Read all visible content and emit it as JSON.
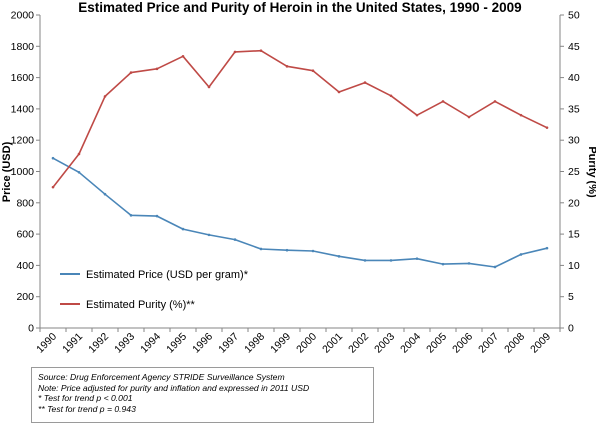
{
  "chart_data": {
    "type": "line",
    "title": "Estimated Price and Purity of Heroin in the United States, 1990 - 2009",
    "x": [
      "1990",
      "1991",
      "1992",
      "1993",
      "1994",
      "1995",
      "1996",
      "1997",
      "1998",
      "1999",
      "2000",
      "2001",
      "2002",
      "2003",
      "2004",
      "2005",
      "2006",
      "2007",
      "2008",
      "2009"
    ],
    "ylabel_left": "Price (USD)",
    "ylabel_right": "Purity (%)",
    "ylim_left": [
      0,
      2000
    ],
    "ylim_right": [
      0,
      50
    ],
    "yticks_left": [
      "0",
      "200",
      "400",
      "600",
      "800",
      "1000",
      "1200",
      "1400",
      "1600",
      "1800",
      "2000"
    ],
    "yticks_right": [
      "0",
      "5",
      "10",
      "15",
      "20",
      "25",
      "30",
      "35",
      "40",
      "45",
      "50"
    ],
    "grid": false,
    "legend_position": "lower-left",
    "series": [
      {
        "name": "Estimated Price (USD per gram)*",
        "axis": "left",
        "color": "#4a86b8",
        "values": [
          1085,
          995,
          855,
          720,
          715,
          632,
          595,
          565,
          505,
          497,
          492,
          458,
          432,
          432,
          443,
          408,
          413,
          390,
          470,
          510
        ]
      },
      {
        "name": "Estimated Purity (%)**",
        "axis": "right",
        "color": "#bf4a46",
        "values": [
          22.5,
          27.8,
          37.0,
          40.8,
          41.4,
          43.4,
          38.5,
          44.1,
          44.3,
          41.8,
          41.1,
          37.7,
          39.2,
          37.1,
          34.0,
          36.2,
          33.7,
          36.2,
          34.0,
          32.0
        ]
      }
    ]
  },
  "notes": {
    "line1": "Source: Drug Enforcement Agency STRIDE Surveillance System",
    "line2": "Note: Price adjusted for purity and inflation and expressed in 2011 USD",
    "line3": "* Test for trend p < 0.001",
    "line4": "** Test for trend p = 0.943"
  }
}
